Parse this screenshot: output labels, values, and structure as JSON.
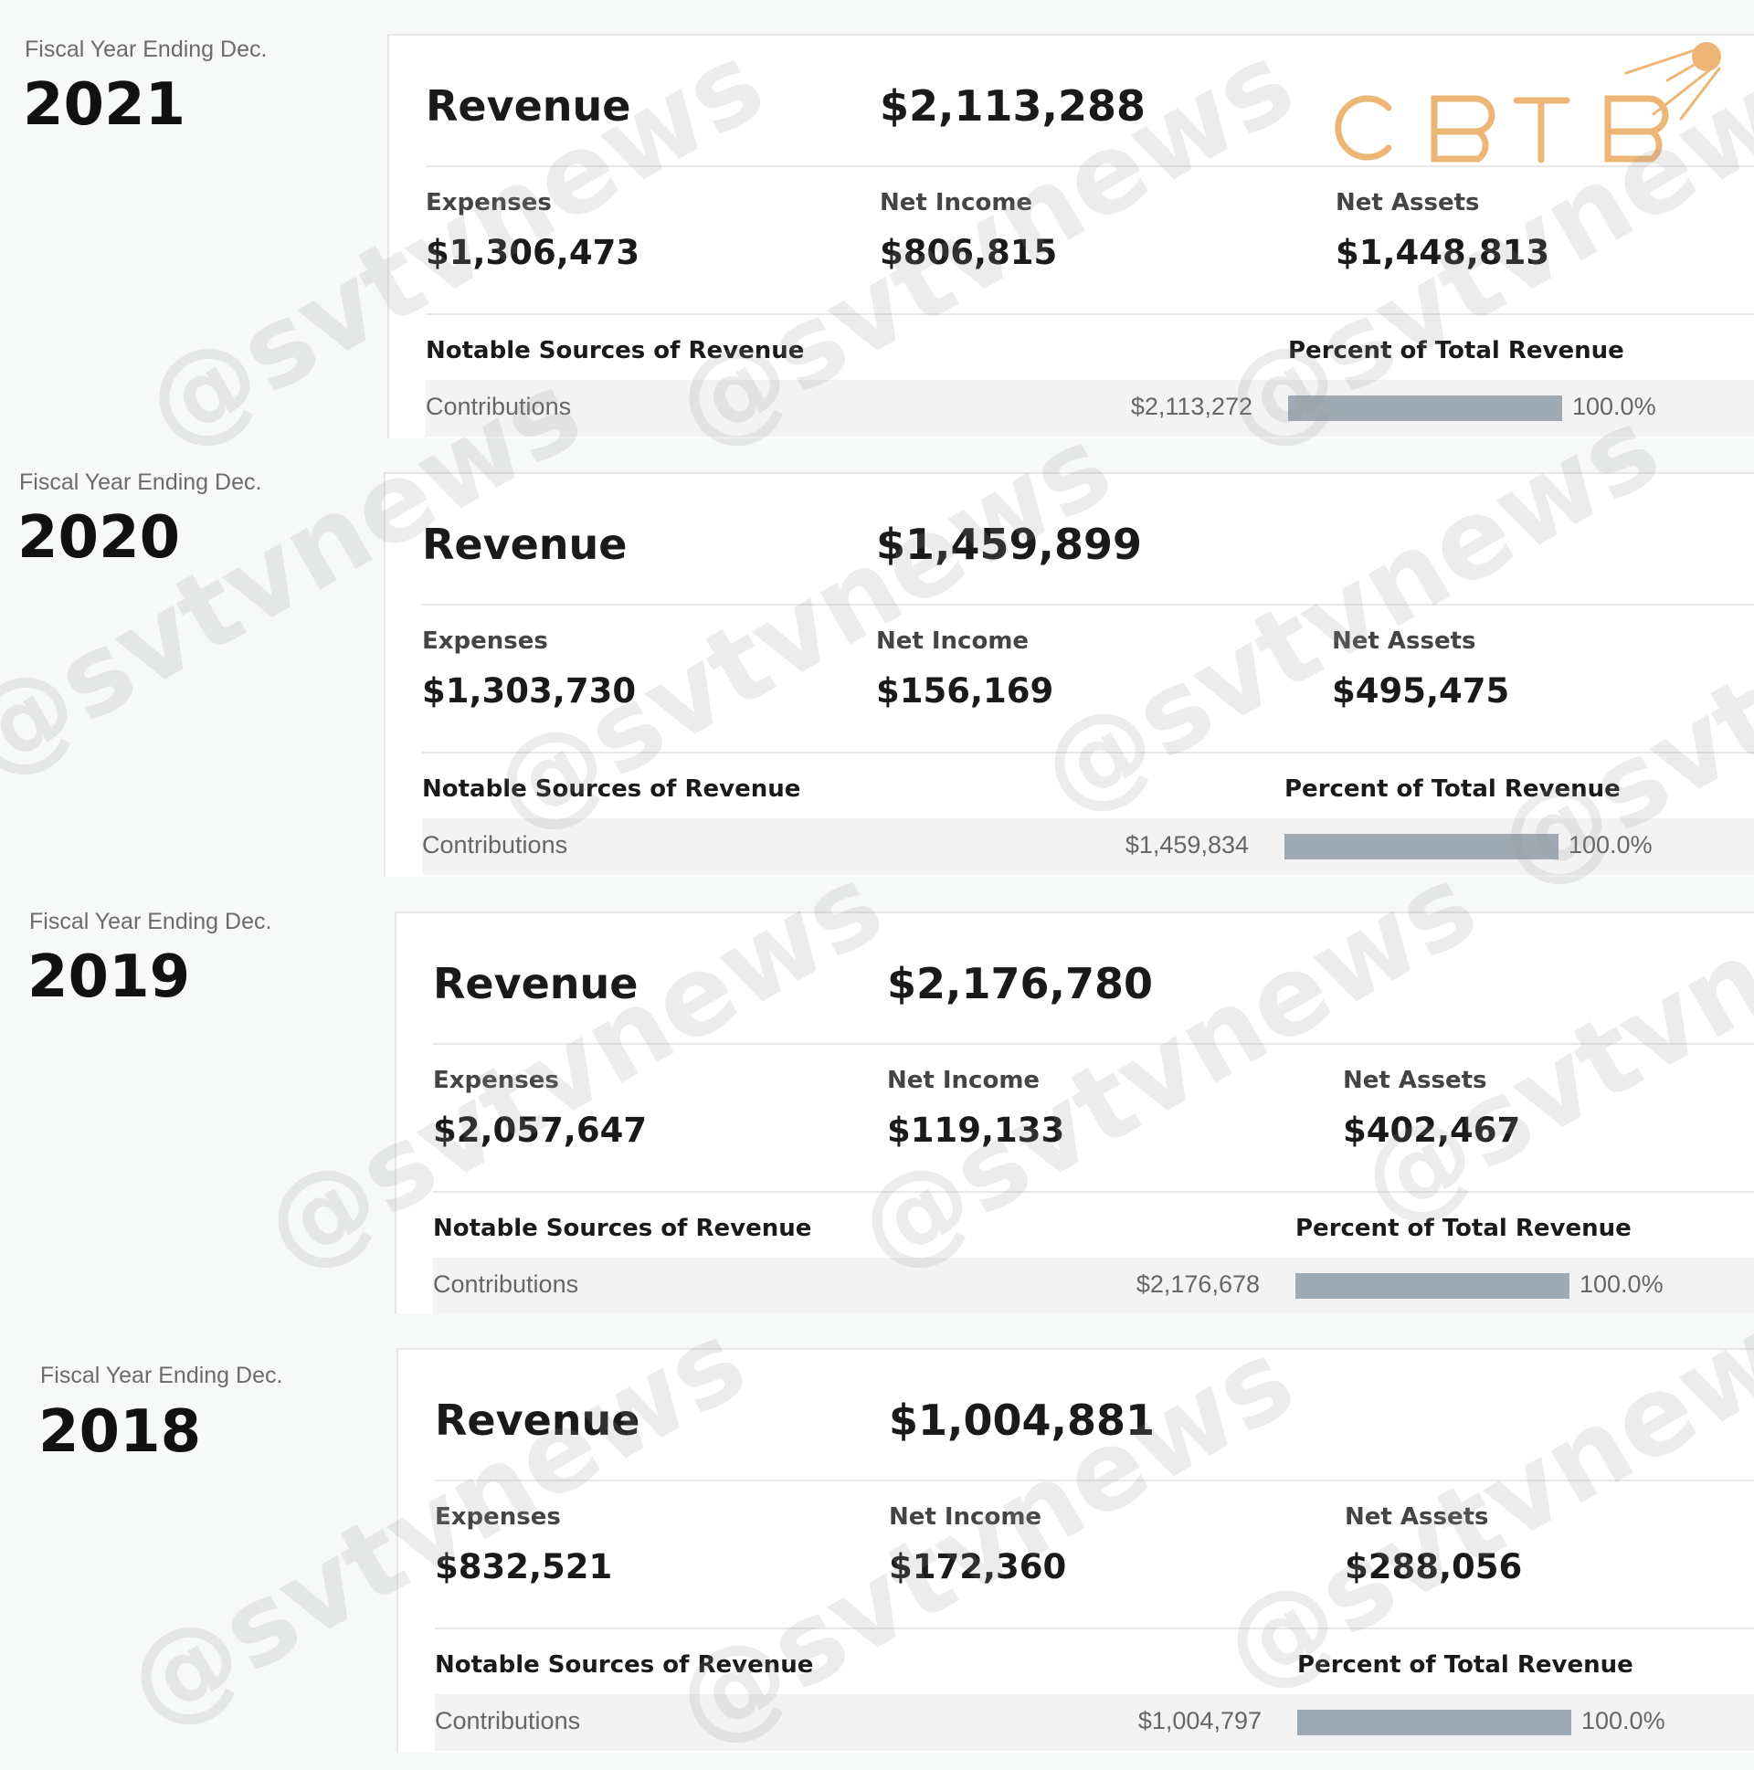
{
  "fiscal_label": "Fiscal Year Ending Dec.",
  "labels": {
    "revenue": "Revenue",
    "expenses": "Expenses",
    "net_income": "Net Income",
    "net_assets": "Net Assets",
    "notable_sources": "Notable Sources of Revenue",
    "percent_total": "Percent of Total Revenue"
  },
  "logo_text": "CBTB",
  "watermark": "@svtvnews",
  "years": [
    {
      "year": "2021",
      "revenue": "$2,113,288",
      "expenses": "$1,306,473",
      "net_income": "$806,815",
      "net_assets": "$1,448,813",
      "source": "Contributions",
      "source_amount": "$2,113,272",
      "percent": "100.0%",
      "percent_value": 100
    },
    {
      "year": "2020",
      "revenue": "$1,459,899",
      "expenses": "$1,303,730",
      "net_income": "$156,169",
      "net_assets": "$495,475",
      "source": "Contributions",
      "source_amount": "$1,459,834",
      "percent": "100.0%",
      "percent_value": 100
    },
    {
      "year": "2019",
      "revenue": "$2,176,780",
      "expenses": "$2,057,647",
      "net_income": "$119,133",
      "net_assets": "$402,467",
      "source": "Contributions",
      "source_amount": "$2,176,678",
      "percent": "100.0%",
      "percent_value": 100
    },
    {
      "year": "2018",
      "revenue": "$1,004,881",
      "expenses": "$832,521",
      "net_income": "$172,360",
      "net_assets": "$288,056",
      "source": "Contributions",
      "source_amount": "$1,004,797",
      "percent": "100.0%",
      "percent_value": 100
    }
  ]
}
